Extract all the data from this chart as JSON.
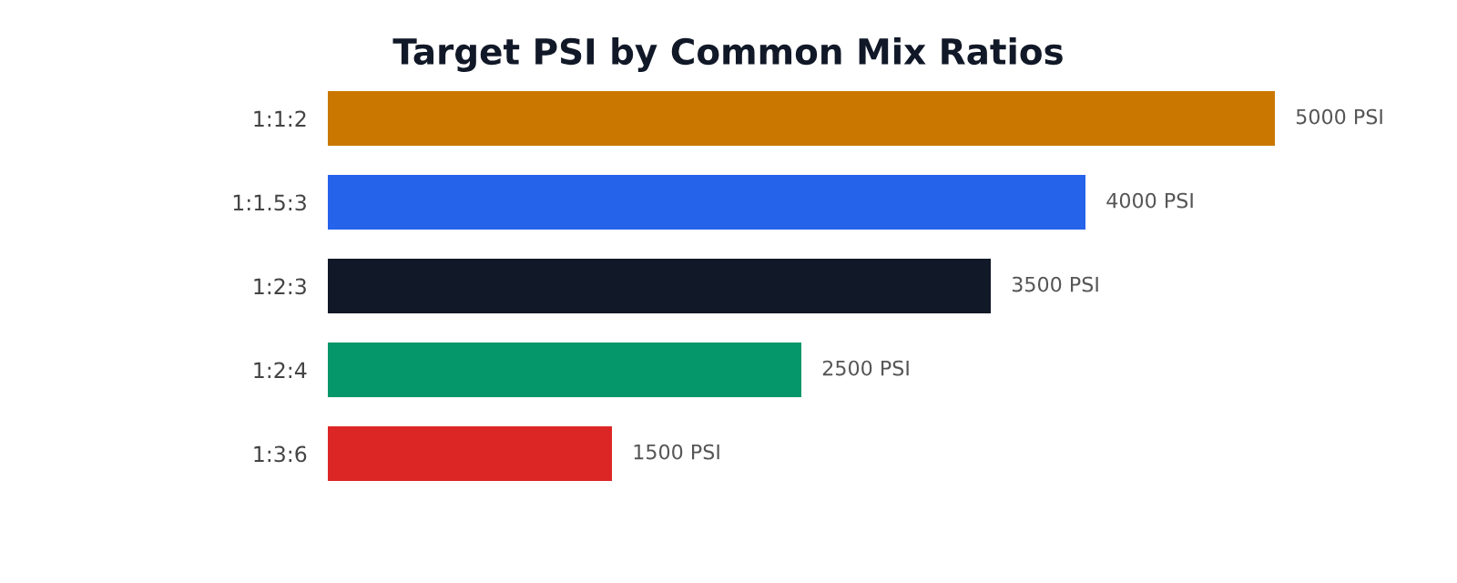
{
  "chart_data": {
    "type": "bar",
    "orientation": "horizontal",
    "title": "Target PSI by Common Mix Ratios",
    "categories": [
      "1:1:2",
      "1:1.5:3",
      "1:2:3",
      "1:2:4",
      "1:3:6"
    ],
    "values": [
      5000,
      4000,
      3500,
      2500,
      1500
    ],
    "colors": [
      "#ca7700",
      "#2563eb",
      "#111827",
      "#059669",
      "#dc2626"
    ],
    "value_labels": [
      "5000 PSI",
      "4000 PSI",
      "3500 PSI",
      "2500 PSI",
      "1500 PSI"
    ],
    "tick_labels": "y",
    "grid": false,
    "legend": false
  }
}
